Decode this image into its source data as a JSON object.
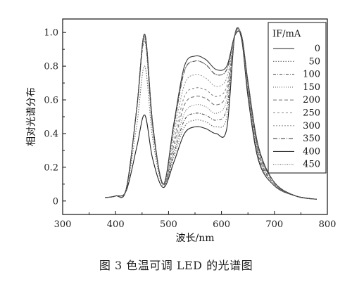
{
  "chart_data": {
    "type": "line",
    "xlabel": "波长/nm",
    "ylabel": "相对光谱分布",
    "xlim": [
      300,
      800
    ],
    "ylim": [
      -0.08,
      1.08
    ],
    "x_ticks": [
      300,
      400,
      500,
      600,
      700,
      800
    ],
    "y_ticks": [
      0,
      0.2,
      0.4,
      0.6,
      0.8,
      1.0
    ],
    "y_tick_labels": [
      "0",
      "0.2",
      "0.4",
      "0.6",
      "0.8",
      "1.0"
    ],
    "legend_title": "IF/mA",
    "legend_position": "right",
    "x": [
      380,
      400,
      420,
      440,
      455,
      470,
      490,
      510,
      530,
      550,
      570,
      590,
      610,
      625,
      638,
      650,
      670,
      700,
      740,
      780
    ],
    "series": [
      {
        "name": "0",
        "values": [
          0.02,
          0.03,
          0.06,
          0.32,
          0.51,
          0.25,
          0.08,
          0.23,
          0.4,
          0.44,
          0.43,
          0.4,
          0.43,
          0.98,
          0.96,
          0.62,
          0.24,
          0.09,
          0.03,
          0.01
        ]
      },
      {
        "name": "50",
        "values": [
          0.02,
          0.03,
          0.07,
          0.45,
          0.8,
          0.37,
          0.09,
          0.26,
          0.44,
          0.48,
          0.47,
          0.44,
          0.5,
          0.98,
          0.97,
          0.64,
          0.25,
          0.09,
          0.03,
          0.01
        ]
      },
      {
        "name": "100",
        "values": [
          0.02,
          0.03,
          0.07,
          0.55,
          0.95,
          0.43,
          0.1,
          0.28,
          0.48,
          0.52,
          0.51,
          0.48,
          0.55,
          0.98,
          0.98,
          0.65,
          0.26,
          0.1,
          0.03,
          0.01
        ]
      },
      {
        "name": "150",
        "values": [
          0.02,
          0.03,
          0.07,
          0.55,
          0.96,
          0.44,
          0.1,
          0.3,
          0.52,
          0.57,
          0.56,
          0.52,
          0.6,
          0.98,
          0.98,
          0.66,
          0.27,
          0.1,
          0.03,
          0.01
        ]
      },
      {
        "name": "200",
        "values": [
          0.02,
          0.03,
          0.07,
          0.55,
          0.97,
          0.45,
          0.1,
          0.33,
          0.57,
          0.62,
          0.61,
          0.57,
          0.64,
          0.98,
          0.98,
          0.67,
          0.28,
          0.1,
          0.03,
          0.01
        ]
      },
      {
        "name": "250",
        "values": [
          0.02,
          0.03,
          0.07,
          0.55,
          0.98,
          0.45,
          0.1,
          0.36,
          0.62,
          0.67,
          0.66,
          0.62,
          0.68,
          0.98,
          0.98,
          0.68,
          0.29,
          0.11,
          0.03,
          0.01
        ]
      },
      {
        "name": "300",
        "values": [
          0.02,
          0.03,
          0.07,
          0.55,
          0.98,
          0.46,
          0.1,
          0.4,
          0.69,
          0.75,
          0.73,
          0.68,
          0.73,
          0.98,
          0.98,
          0.69,
          0.3,
          0.11,
          0.03,
          0.01
        ]
      },
      {
        "name": "350",
        "values": [
          0.02,
          0.03,
          0.07,
          0.55,
          0.99,
          0.46,
          0.1,
          0.44,
          0.77,
          0.83,
          0.81,
          0.75,
          0.78,
          0.98,
          0.98,
          0.7,
          0.31,
          0.11,
          0.03,
          0.01
        ]
      },
      {
        "name": "400",
        "values": [
          0.02,
          0.03,
          0.07,
          0.55,
          0.99,
          0.46,
          0.1,
          0.46,
          0.8,
          0.86,
          0.84,
          0.78,
          0.8,
          0.98,
          0.98,
          0.71,
          0.32,
          0.11,
          0.03,
          0.01
        ]
      },
      {
        "name": "450",
        "values": [
          0.02,
          0.03,
          0.07,
          0.55,
          0.99,
          0.46,
          0.1,
          0.44,
          0.77,
          0.83,
          0.81,
          0.75,
          0.78,
          0.98,
          0.98,
          0.7,
          0.31,
          0.11,
          0.03,
          0.01
        ]
      }
    ],
    "series_styles": [
      {
        "color": "#222222",
        "dash": ""
      },
      {
        "color": "#6a6a6a",
        "dash": "1.5,2"
      },
      {
        "color": "#555555",
        "dash": "4,2,1,2"
      },
      {
        "color": "#666666",
        "dash": "1,2"
      },
      {
        "color": "#777777",
        "dash": "5,3"
      },
      {
        "color": "#888888",
        "dash": "3,3"
      },
      {
        "color": "#999999",
        "dash": "2,2"
      },
      {
        "color": "#444444",
        "dash": "6,2,1,2"
      },
      {
        "color": "#333333",
        "dash": ""
      },
      {
        "color": "#6a6a6a",
        "dash": "1,1.5"
      }
    ],
    "caption": "图 3  色温可调 LED 的光谱图"
  }
}
